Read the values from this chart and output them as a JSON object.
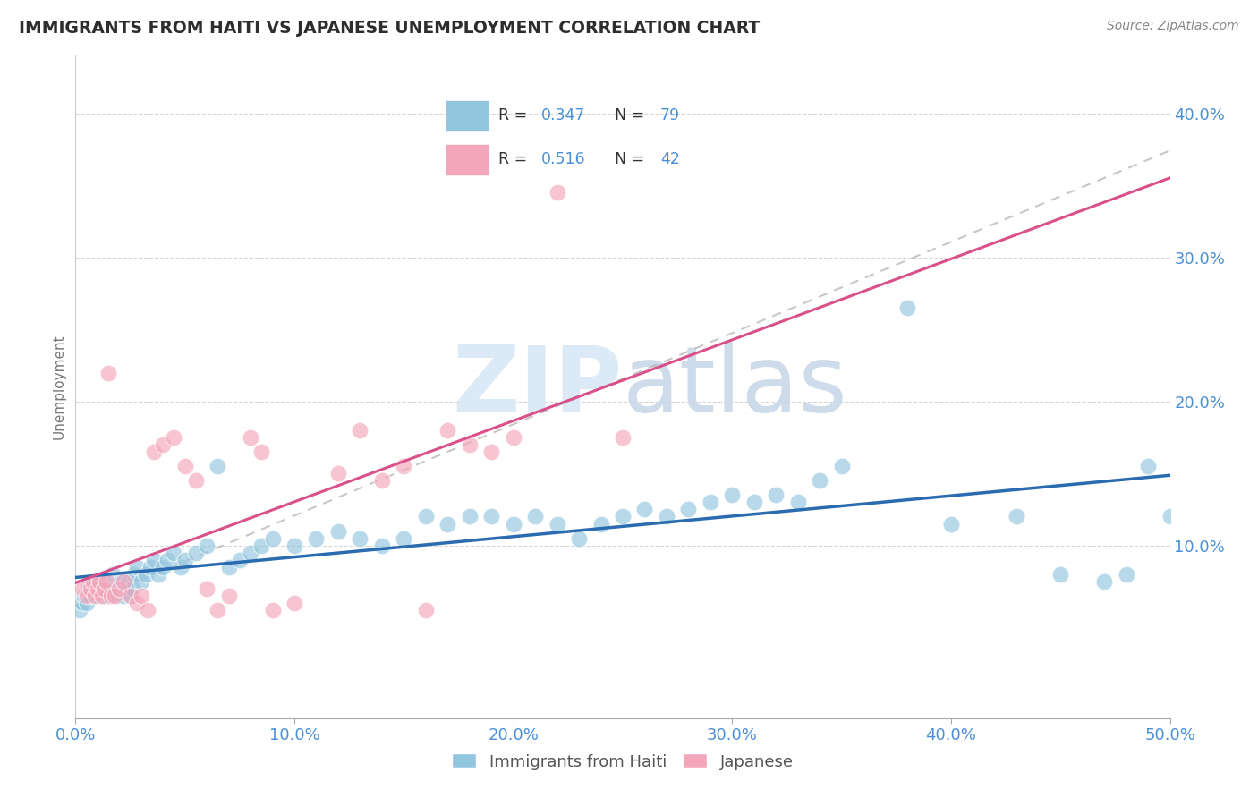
{
  "title": "IMMIGRANTS FROM HAITI VS JAPANESE UNEMPLOYMENT CORRELATION CHART",
  "source": "Source: ZipAtlas.com",
  "ylabel_label": "Unemployment",
  "xlim": [
    0,
    0.5
  ],
  "ylim": [
    -0.02,
    0.44
  ],
  "legend_r1": "R = 0.347",
  "legend_n1": "N = 79",
  "legend_r2": "R = 0.516",
  "legend_n2": "N = 42",
  "blue_color": "#92c5de",
  "pink_color": "#f4a6bb",
  "blue_line_color": "#2b6cb0",
  "pink_line_color": "#d9508a",
  "gray_dash_color": "#b0b0b0",
  "axis_label_color": "#4a90d9",
  "title_color": "#2d2d2d",
  "blue_scatter_x": [
    0.002,
    0.003,
    0.004,
    0.005,
    0.006,
    0.007,
    0.008,
    0.009,
    0.01,
    0.011,
    0.012,
    0.013,
    0.014,
    0.015,
    0.016,
    0.017,
    0.018,
    0.019,
    0.02,
    0.021,
    0.022,
    0.023,
    0.024,
    0.025,
    0.026,
    0.027,
    0.028,
    0.03,
    0.032,
    0.034,
    0.036,
    0.038,
    0.04,
    0.042,
    0.045,
    0.048,
    0.05,
    0.055,
    0.06,
    0.065,
    0.07,
    0.075,
    0.08,
    0.085,
    0.09,
    0.1,
    0.11,
    0.12,
    0.13,
    0.14,
    0.15,
    0.16,
    0.17,
    0.18,
    0.19,
    0.2,
    0.21,
    0.22,
    0.23,
    0.24,
    0.25,
    0.26,
    0.27,
    0.28,
    0.29,
    0.3,
    0.31,
    0.32,
    0.33,
    0.34,
    0.35,
    0.38,
    0.4,
    0.43,
    0.45,
    0.47,
    0.48,
    0.49,
    0.5
  ],
  "blue_scatter_y": [
    0.055,
    0.06,
    0.065,
    0.06,
    0.07,
    0.065,
    0.07,
    0.075,
    0.065,
    0.07,
    0.075,
    0.065,
    0.07,
    0.065,
    0.07,
    0.08,
    0.07,
    0.065,
    0.07,
    0.075,
    0.065,
    0.07,
    0.075,
    0.065,
    0.07,
    0.08,
    0.085,
    0.075,
    0.08,
    0.085,
    0.09,
    0.08,
    0.085,
    0.09,
    0.095,
    0.085,
    0.09,
    0.095,
    0.1,
    0.155,
    0.085,
    0.09,
    0.095,
    0.1,
    0.105,
    0.1,
    0.105,
    0.11,
    0.105,
    0.1,
    0.105,
    0.12,
    0.115,
    0.12,
    0.12,
    0.115,
    0.12,
    0.115,
    0.105,
    0.115,
    0.12,
    0.125,
    0.12,
    0.125,
    0.13,
    0.135,
    0.13,
    0.135,
    0.13,
    0.145,
    0.155,
    0.265,
    0.115,
    0.12,
    0.08,
    0.075,
    0.08,
    0.155,
    0.12
  ],
  "pink_scatter_x": [
    0.003,
    0.005,
    0.007,
    0.008,
    0.009,
    0.01,
    0.011,
    0.012,
    0.013,
    0.014,
    0.015,
    0.016,
    0.018,
    0.02,
    0.022,
    0.025,
    0.028,
    0.03,
    0.033,
    0.036,
    0.04,
    0.045,
    0.05,
    0.055,
    0.06,
    0.065,
    0.07,
    0.08,
    0.085,
    0.09,
    0.1,
    0.12,
    0.13,
    0.14,
    0.15,
    0.16,
    0.17,
    0.18,
    0.19,
    0.2,
    0.22,
    0.25
  ],
  "pink_scatter_y": [
    0.07,
    0.065,
    0.07,
    0.075,
    0.065,
    0.07,
    0.075,
    0.065,
    0.07,
    0.075,
    0.22,
    0.065,
    0.065,
    0.07,
    0.075,
    0.065,
    0.06,
    0.065,
    0.055,
    0.165,
    0.17,
    0.175,
    0.155,
    0.145,
    0.07,
    0.055,
    0.065,
    0.175,
    0.165,
    0.055,
    0.06,
    0.15,
    0.18,
    0.145,
    0.155,
    0.055,
    0.18,
    0.17,
    0.165,
    0.175,
    0.345,
    0.175
  ]
}
